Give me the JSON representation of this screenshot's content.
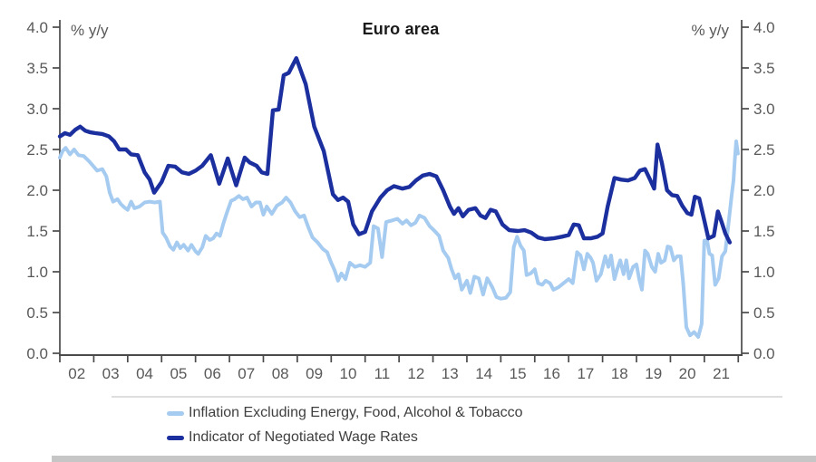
{
  "chart_data": {
    "type": "line",
    "title": "Euro area",
    "y_axis_label_left": "% y/y",
    "y_axis_label_right": "% y/y",
    "ylim": [
      0.0,
      4.0
    ],
    "y_tick_step": 0.5,
    "y_tick_labels": [
      "0.0",
      "0.5",
      "1.0",
      "1.5",
      "2.0",
      "2.5",
      "3.0",
      "3.5",
      "4.0"
    ],
    "x_tick_labels": [
      "02",
      "03",
      "04",
      "05",
      "06",
      "07",
      "08",
      "09",
      "10",
      "11",
      "12",
      "13",
      "14",
      "15",
      "16",
      "17",
      "18",
      "19",
      "20",
      "21"
    ],
    "x_range": [
      2002,
      2022
    ],
    "grid": false,
    "legend_position": "bottom",
    "axis_color": "#4a4a4a",
    "tick_label_color": "#595959",
    "series": [
      {
        "name": "Inflation Excluding Energy, Food, Alcohol & Tobacco",
        "color": "#a6cbf0",
        "width": 4,
        "points": [
          [
            2002.0,
            2.4
          ],
          [
            2002.08,
            2.48
          ],
          [
            2002.17,
            2.52
          ],
          [
            2002.3,
            2.44
          ],
          [
            2002.42,
            2.5
          ],
          [
            2002.55,
            2.43
          ],
          [
            2002.7,
            2.42
          ],
          [
            2002.85,
            2.36
          ],
          [
            2003.0,
            2.29
          ],
          [
            2003.1,
            2.24
          ],
          [
            2003.25,
            2.26
          ],
          [
            2003.37,
            2.17
          ],
          [
            2003.47,
            1.97
          ],
          [
            2003.57,
            1.86
          ],
          [
            2003.7,
            1.89
          ],
          [
            2003.8,
            1.83
          ],
          [
            2003.9,
            1.79
          ],
          [
            2004.0,
            1.76
          ],
          [
            2004.1,
            1.86
          ],
          [
            2004.2,
            1.78
          ],
          [
            2004.35,
            1.8
          ],
          [
            2004.5,
            1.85
          ],
          [
            2004.65,
            1.86
          ],
          [
            2004.8,
            1.85
          ],
          [
            2004.95,
            1.86
          ],
          [
            2005.03,
            1.48
          ],
          [
            2005.13,
            1.42
          ],
          [
            2005.25,
            1.31
          ],
          [
            2005.35,
            1.27
          ],
          [
            2005.45,
            1.36
          ],
          [
            2005.55,
            1.29
          ],
          [
            2005.65,
            1.33
          ],
          [
            2005.78,
            1.26
          ],
          [
            2005.88,
            1.33
          ],
          [
            2006.0,
            1.25
          ],
          [
            2006.08,
            1.22
          ],
          [
            2006.2,
            1.3
          ],
          [
            2006.3,
            1.44
          ],
          [
            2006.42,
            1.39
          ],
          [
            2006.52,
            1.41
          ],
          [
            2006.62,
            1.47
          ],
          [
            2006.72,
            1.44
          ],
          [
            2006.82,
            1.59
          ],
          [
            2006.92,
            1.72
          ],
          [
            2007.05,
            1.87
          ],
          [
            2007.15,
            1.89
          ],
          [
            2007.28,
            1.93
          ],
          [
            2007.4,
            1.89
          ],
          [
            2007.52,
            1.91
          ],
          [
            2007.65,
            1.8
          ],
          [
            2007.78,
            1.85
          ],
          [
            2007.9,
            1.85
          ],
          [
            2008.0,
            1.7
          ],
          [
            2008.1,
            1.8
          ],
          [
            2008.25,
            1.71
          ],
          [
            2008.4,
            1.81
          ],
          [
            2008.55,
            1.85
          ],
          [
            2008.67,
            1.91
          ],
          [
            2008.8,
            1.85
          ],
          [
            2008.94,
            1.74
          ],
          [
            2009.07,
            1.67
          ],
          [
            2009.2,
            1.69
          ],
          [
            2009.32,
            1.55
          ],
          [
            2009.45,
            1.42
          ],
          [
            2009.6,
            1.36
          ],
          [
            2009.75,
            1.28
          ],
          [
            2009.88,
            1.24
          ],
          [
            2010.0,
            1.11
          ],
          [
            2010.1,
            1.02
          ],
          [
            2010.2,
            0.89
          ],
          [
            2010.3,
            0.98
          ],
          [
            2010.42,
            0.91
          ],
          [
            2010.55,
            1.11
          ],
          [
            2010.7,
            1.06
          ],
          [
            2010.85,
            1.08
          ],
          [
            2011.0,
            1.06
          ],
          [
            2011.15,
            1.11
          ],
          [
            2011.25,
            1.56
          ],
          [
            2011.38,
            1.53
          ],
          [
            2011.5,
            1.18
          ],
          [
            2011.62,
            1.61
          ],
          [
            2011.8,
            1.63
          ],
          [
            2011.95,
            1.65
          ],
          [
            2012.1,
            1.59
          ],
          [
            2012.22,
            1.63
          ],
          [
            2012.35,
            1.57
          ],
          [
            2012.48,
            1.6
          ],
          [
            2012.6,
            1.69
          ],
          [
            2012.75,
            1.66
          ],
          [
            2012.9,
            1.56
          ],
          [
            2013.05,
            1.5
          ],
          [
            2013.18,
            1.44
          ],
          [
            2013.3,
            1.26
          ],
          [
            2013.45,
            1.17
          ],
          [
            2013.55,
            1.03
          ],
          [
            2013.65,
            0.92
          ],
          [
            2013.75,
            0.97
          ],
          [
            2013.85,
            0.78
          ],
          [
            2014.0,
            0.89
          ],
          [
            2014.1,
            0.74
          ],
          [
            2014.22,
            0.94
          ],
          [
            2014.35,
            0.92
          ],
          [
            2014.48,
            0.72
          ],
          [
            2014.6,
            0.92
          ],
          [
            2014.75,
            0.81
          ],
          [
            2014.87,
            0.69
          ],
          [
            2015.0,
            0.67
          ],
          [
            2015.15,
            0.68
          ],
          [
            2015.28,
            0.75
          ],
          [
            2015.38,
            1.3
          ],
          [
            2015.48,
            1.43
          ],
          [
            2015.58,
            1.32
          ],
          [
            2015.68,
            1.26
          ],
          [
            2015.76,
            0.96
          ],
          [
            2015.88,
            0.98
          ],
          [
            2016.0,
            1.03
          ],
          [
            2016.1,
            0.86
          ],
          [
            2016.22,
            0.84
          ],
          [
            2016.32,
            0.89
          ],
          [
            2016.45,
            0.86
          ],
          [
            2016.55,
            0.78
          ],
          [
            2016.7,
            0.81
          ],
          [
            2016.85,
            0.86
          ],
          [
            2017.0,
            0.91
          ],
          [
            2017.12,
            0.86
          ],
          [
            2017.25,
            1.24
          ],
          [
            2017.35,
            1.2
          ],
          [
            2017.45,
            1.03
          ],
          [
            2017.55,
            1.22
          ],
          [
            2017.65,
            1.17
          ],
          [
            2017.72,
            1.11
          ],
          [
            2017.82,
            0.89
          ],
          [
            2017.95,
            0.97
          ],
          [
            2018.08,
            1.19
          ],
          [
            2018.17,
            1.06
          ],
          [
            2018.25,
            1.2
          ],
          [
            2018.35,
            0.91
          ],
          [
            2018.43,
            1.03
          ],
          [
            2018.52,
            1.14
          ],
          [
            2018.62,
            0.97
          ],
          [
            2018.7,
            1.14
          ],
          [
            2018.78,
            0.92
          ],
          [
            2018.9,
            1.06
          ],
          [
            2019.0,
            1.09
          ],
          [
            2019.08,
            0.91
          ],
          [
            2019.16,
            0.78
          ],
          [
            2019.25,
            1.26
          ],
          [
            2019.33,
            1.22
          ],
          [
            2019.45,
            1.06
          ],
          [
            2019.55,
            1.0
          ],
          [
            2019.64,
            1.22
          ],
          [
            2019.72,
            1.11
          ],
          [
            2019.83,
            1.14
          ],
          [
            2019.92,
            1.31
          ],
          [
            2020.0,
            1.3
          ],
          [
            2020.1,
            1.14
          ],
          [
            2020.2,
            1.19
          ],
          [
            2020.3,
            1.19
          ],
          [
            2020.38,
            0.85
          ],
          [
            2020.47,
            0.32
          ],
          [
            2020.58,
            0.22
          ],
          [
            2020.7,
            0.26
          ],
          [
            2020.82,
            0.2
          ],
          [
            2020.92,
            0.36
          ],
          [
            2021.0,
            1.38
          ],
          [
            2021.08,
            1.39
          ],
          [
            2021.15,
            1.22
          ],
          [
            2021.23,
            1.2
          ],
          [
            2021.32,
            0.84
          ],
          [
            2021.42,
            0.92
          ],
          [
            2021.52,
            1.19
          ],
          [
            2021.62,
            1.25
          ],
          [
            2021.72,
            1.62
          ],
          [
            2021.8,
            1.92
          ],
          [
            2021.86,
            2.12
          ],
          [
            2021.9,
            2.38
          ],
          [
            2021.94,
            2.6
          ],
          [
            2021.99,
            2.45
          ]
        ]
      },
      {
        "name": "Indicator of Negotiated Wage Rates",
        "color": "#1c2f9e",
        "width": 4.4,
        "points": [
          [
            2002.0,
            2.66
          ],
          [
            2002.15,
            2.7
          ],
          [
            2002.3,
            2.68
          ],
          [
            2002.45,
            2.74
          ],
          [
            2002.6,
            2.78
          ],
          [
            2002.75,
            2.73
          ],
          [
            2002.9,
            2.71
          ],
          [
            2003.05,
            2.7
          ],
          [
            2003.25,
            2.69
          ],
          [
            2003.45,
            2.66
          ],
          [
            2003.6,
            2.6
          ],
          [
            2003.75,
            2.5
          ],
          [
            2003.95,
            2.5
          ],
          [
            2004.1,
            2.44
          ],
          [
            2004.3,
            2.43
          ],
          [
            2004.5,
            2.22
          ],
          [
            2004.65,
            2.13
          ],
          [
            2004.78,
            1.97
          ],
          [
            2005.0,
            2.1
          ],
          [
            2005.2,
            2.3
          ],
          [
            2005.4,
            2.29
          ],
          [
            2005.6,
            2.22
          ],
          [
            2005.8,
            2.2
          ],
          [
            2006.0,
            2.24
          ],
          [
            2006.2,
            2.3
          ],
          [
            2006.45,
            2.43
          ],
          [
            2006.7,
            2.08
          ],
          [
            2006.95,
            2.39
          ],
          [
            2007.2,
            2.06
          ],
          [
            2007.45,
            2.4
          ],
          [
            2007.6,
            2.34
          ],
          [
            2007.8,
            2.3
          ],
          [
            2007.95,
            2.22
          ],
          [
            2008.12,
            2.2
          ],
          [
            2008.28,
            2.98
          ],
          [
            2008.45,
            2.99
          ],
          [
            2008.6,
            3.41
          ],
          [
            2008.75,
            3.44
          ],
          [
            2008.97,
            3.62
          ],
          [
            2009.25,
            3.3
          ],
          [
            2009.5,
            2.78
          ],
          [
            2009.78,
            2.48
          ],
          [
            2010.05,
            1.95
          ],
          [
            2010.2,
            1.88
          ],
          [
            2010.35,
            1.91
          ],
          [
            2010.5,
            1.86
          ],
          [
            2010.65,
            1.58
          ],
          [
            2010.82,
            1.46
          ],
          [
            2011.0,
            1.49
          ],
          [
            2011.2,
            1.74
          ],
          [
            2011.45,
            1.91
          ],
          [
            2011.65,
            2.0
          ],
          [
            2011.85,
            2.05
          ],
          [
            2012.1,
            2.02
          ],
          [
            2012.3,
            2.04
          ],
          [
            2012.5,
            2.12
          ],
          [
            2012.7,
            2.18
          ],
          [
            2012.9,
            2.2
          ],
          [
            2013.1,
            2.17
          ],
          [
            2013.3,
            2.0
          ],
          [
            2013.5,
            1.8
          ],
          [
            2013.62,
            1.71
          ],
          [
            2013.75,
            1.78
          ],
          [
            2013.88,
            1.68
          ],
          [
            2014.05,
            1.76
          ],
          [
            2014.25,
            1.78
          ],
          [
            2014.4,
            1.69
          ],
          [
            2014.55,
            1.66
          ],
          [
            2014.7,
            1.76
          ],
          [
            2014.85,
            1.74
          ],
          [
            2015.05,
            1.58
          ],
          [
            2015.25,
            1.51
          ],
          [
            2015.5,
            1.5
          ],
          [
            2015.7,
            1.51
          ],
          [
            2015.9,
            1.48
          ],
          [
            2016.1,
            1.42
          ],
          [
            2016.3,
            1.4
          ],
          [
            2016.55,
            1.41
          ],
          [
            2016.8,
            1.43
          ],
          [
            2017.0,
            1.45
          ],
          [
            2017.15,
            1.58
          ],
          [
            2017.3,
            1.57
          ],
          [
            2017.45,
            1.41
          ],
          [
            2017.65,
            1.41
          ],
          [
            2017.85,
            1.43
          ],
          [
            2018.0,
            1.47
          ],
          [
            2018.15,
            1.8
          ],
          [
            2018.35,
            2.15
          ],
          [
            2018.55,
            2.13
          ],
          [
            2018.75,
            2.12
          ],
          [
            2018.95,
            2.15
          ],
          [
            2019.1,
            2.24
          ],
          [
            2019.25,
            2.26
          ],
          [
            2019.4,
            2.13
          ],
          [
            2019.52,
            2.02
          ],
          [
            2019.62,
            2.56
          ],
          [
            2019.75,
            2.33
          ],
          [
            2019.9,
            2.0
          ],
          [
            2020.05,
            1.94
          ],
          [
            2020.2,
            1.93
          ],
          [
            2020.35,
            1.81
          ],
          [
            2020.5,
            1.72
          ],
          [
            2020.62,
            1.7
          ],
          [
            2020.72,
            1.92
          ],
          [
            2020.85,
            1.9
          ],
          [
            2021.0,
            1.63
          ],
          [
            2021.12,
            1.41
          ],
          [
            2021.28,
            1.44
          ],
          [
            2021.4,
            1.74
          ],
          [
            2021.5,
            1.62
          ],
          [
            2021.62,
            1.47
          ],
          [
            2021.75,
            1.36
          ]
        ]
      }
    ]
  }
}
